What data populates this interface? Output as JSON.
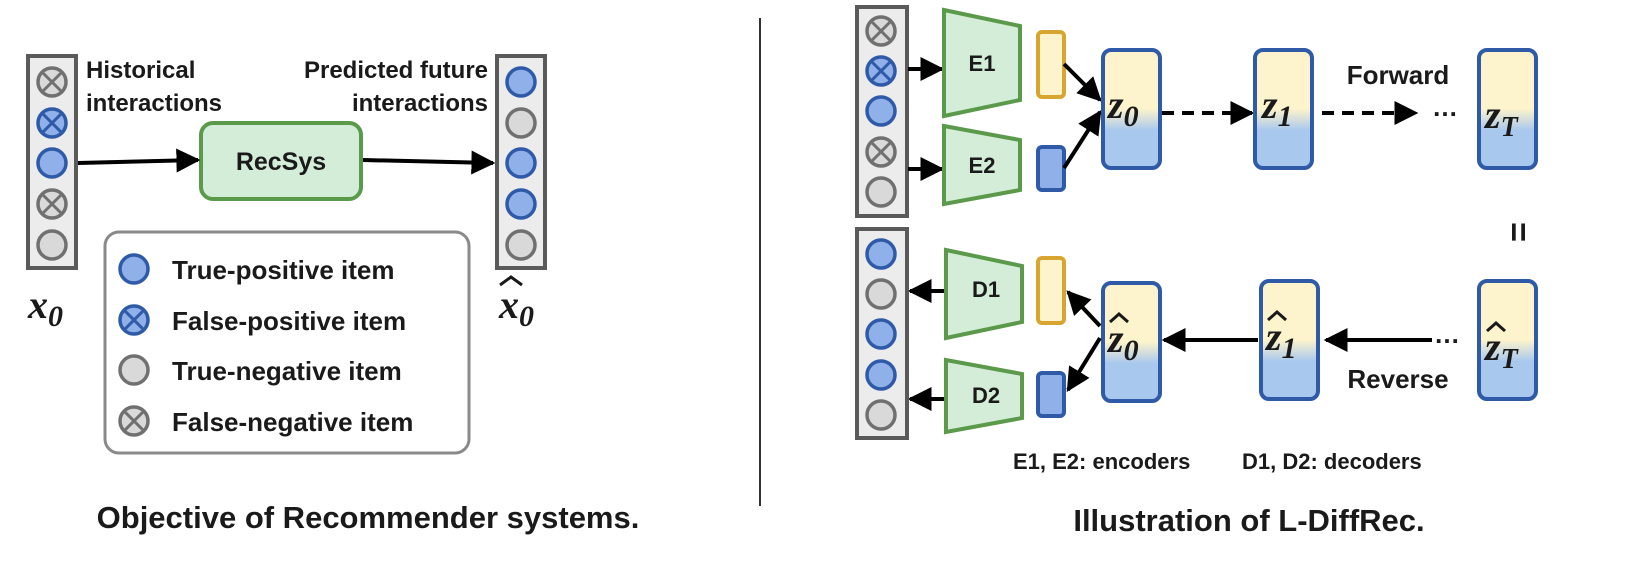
{
  "left_panel": {
    "caption": "Objective of Recommender systems.",
    "input_label_1": "Historical",
    "input_label_2": "interactions",
    "output_label_1": "Predicted future",
    "output_label_2": "interactions",
    "model_label": "RecSys",
    "x0_sub": "0",
    "legend": {
      "true_positive": "True-positive item",
      "false_positive": "False-positive item",
      "true_negative": "True-negative item",
      "false_negative": "False-negative item"
    }
  },
  "right_panel": {
    "caption": "Illustration of L-DiffRec.",
    "encoders": [
      "E1",
      "E2"
    ],
    "decoders": [
      "D1",
      "D2"
    ],
    "forward_label": "Forward",
    "reverse_label": "Reverse",
    "ellipsis": "…",
    "equals": "=",
    "latent_forward_subs": [
      "0",
      "1",
      "T"
    ],
    "latent_reverse_subs": [
      "0",
      "1",
      "T"
    ],
    "encoders_note": "E1, E2: encoders",
    "decoders_note": "D1, D2: decoders"
  },
  "colors": {
    "green_fill": "#d4edd8",
    "green_stroke": "#5a9a4a",
    "blue_item": "#8fb0e8",
    "blue_stroke": "#2f5aa8",
    "gray_item": "#d9d9d9",
    "gray_stroke": "#707070",
    "gold": "#d8a531",
    "latent_top": "#fdf3cc",
    "latent_bottom": "#a9c8ee"
  }
}
